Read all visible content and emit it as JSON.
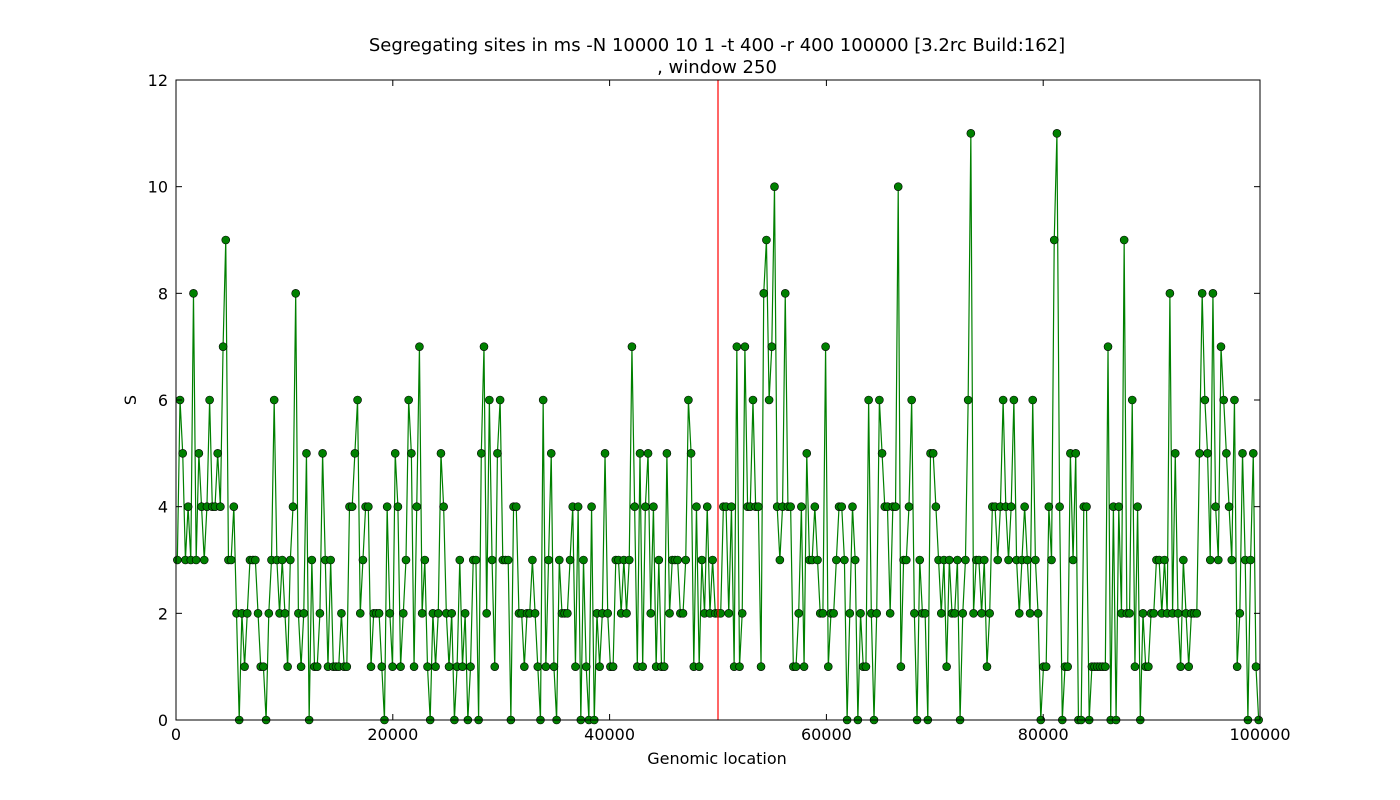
{
  "chart_data": {
    "type": "line",
    "title_line1": "Segregating sites in ms -N 10000 10 1 -t 400 -r 400 100000  [3.2rc Build:162]",
    "title_line2": ", window 250",
    "xlabel": "Genomic location",
    "ylabel": "S",
    "xlim": [
      0,
      100000
    ],
    "ylim": [
      0,
      12
    ],
    "x_ticks": [
      0,
      20000,
      40000,
      60000,
      80000,
      100000
    ],
    "x_tick_labels": [
      "0",
      "20000",
      "40000",
      "60000",
      "80000",
      "100000"
    ],
    "y_ticks": [
      0,
      2,
      4,
      6,
      8,
      10,
      12
    ],
    "y_tick_labels": [
      "0",
      "2",
      "4",
      "6",
      "8",
      "10",
      "12"
    ],
    "grid": false,
    "series": [
      {
        "color": "#008000",
        "marker": "circle",
        "window": 250,
        "values": [
          3,
          6,
          5,
          3,
          4,
          3,
          8,
          3,
          5,
          4,
          3,
          4,
          6,
          4,
          4,
          5,
          4,
          7,
          9,
          3,
          3,
          4,
          2,
          0,
          2,
          1,
          2,
          3,
          3,
          3,
          2,
          1,
          1,
          0,
          2,
          3,
          6,
          3,
          2,
          3,
          2,
          1,
          3,
          4,
          8,
          2,
          1,
          2,
          5,
          0,
          3,
          1,
          1,
          2,
          5,
          3,
          1,
          3,
          1,
          1,
          1,
          2,
          1,
          1,
          4,
          4,
          5,
          6,
          2,
          3,
          4,
          4,
          1,
          2,
          2,
          2,
          1,
          0,
          4,
          2,
          1,
          5,
          4,
          1,
          2,
          3,
          6,
          5,
          1,
          4,
          7,
          2,
          3,
          1,
          0,
          2,
          1,
          2,
          5,
          4,
          2,
          1,
          2,
          0,
          1,
          3,
          1,
          2,
          0,
          1,
          3,
          3,
          0,
          5,
          7,
          2,
          6,
          3,
          1,
          5,
          6,
          3,
          3,
          3,
          0,
          4,
          4,
          2,
          2,
          1,
          2,
          2,
          3,
          2,
          1,
          0,
          6,
          1,
          3,
          5,
          1,
          0,
          3,
          2,
          2,
          2,
          3,
          4,
          1,
          4,
          0,
          3,
          1,
          0,
          4,
          0,
          2,
          1,
          2,
          5,
          2,
          1,
          1,
          3,
          3,
          2,
          3,
          2,
          3,
          7,
          4,
          1,
          5,
          1,
          4,
          5,
          2,
          4,
          1,
          3,
          1,
          1,
          5,
          2,
          3,
          3,
          3,
          2,
          2,
          3,
          6,
          5,
          1,
          4,
          1,
          3,
          2,
          4,
          2,
          3,
          2,
          2,
          2,
          4,
          4,
          2,
          4,
          1,
          7,
          1,
          2,
          7,
          4,
          4,
          6,
          4,
          4,
          1,
          8,
          9,
          6,
          7,
          10,
          4,
          3,
          4,
          8,
          4,
          4,
          1,
          1,
          2,
          4,
          1,
          5,
          3,
          3,
          4,
          3,
          2,
          2,
          7,
          1,
          2,
          2,
          3,
          4,
          4,
          3,
          0,
          2,
          4,
          3,
          0,
          2,
          1,
          1,
          6,
          2,
          0,
          2,
          6,
          5,
          4,
          4,
          2,
          4,
          4,
          10,
          1,
          3,
          3,
          4,
          6,
          2,
          0,
          3,
          2,
          2,
          0,
          5,
          5,
          4,
          3,
          2,
          3,
          1,
          3,
          2,
          2,
          3,
          0,
          2,
          3,
          6,
          11,
          2,
          3,
          3,
          2,
          3,
          1,
          2,
          4,
          4,
          3,
          4,
          6,
          4,
          3,
          4,
          6,
          3,
          2,
          3,
          4,
          3,
          2,
          6,
          3,
          2,
          0,
          1,
          1,
          4,
          3,
          9,
          11,
          4,
          0,
          1,
          1,
          5,
          3,
          5,
          0,
          0,
          4,
          4,
          0,
          1,
          1,
          1,
          1,
          1,
          1,
          7,
          0,
          4,
          0,
          4,
          2,
          9,
          2,
          2,
          6,
          1,
          4,
          0,
          2,
          1,
          1,
          2,
          2,
          3,
          3,
          2,
          3,
          2,
          8,
          2,
          5,
          2,
          1,
          3,
          2,
          1,
          2,
          2,
          2,
          5,
          8,
          6,
          5,
          3,
          8,
          4,
          3,
          7,
          6,
          5,
          4,
          3,
          6,
          1,
          2,
          5,
          3,
          0,
          3,
          5,
          1,
          0
        ],
        "note_unused": ""
      }
    ],
    "vline": {
      "x": 50000,
      "color": "#ff0000"
    }
  }
}
